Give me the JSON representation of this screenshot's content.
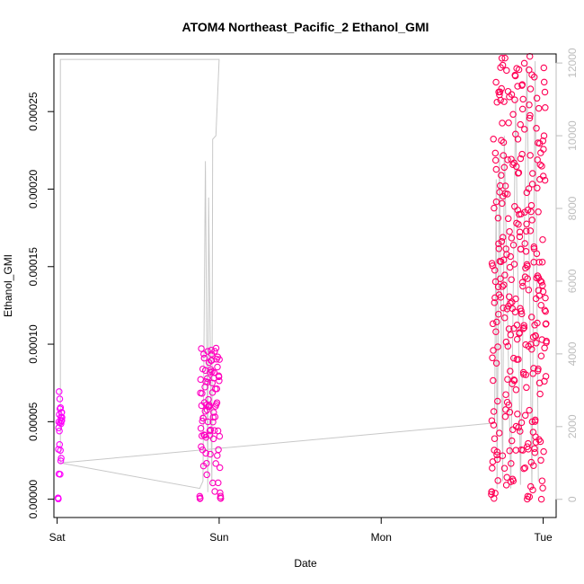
{
  "chart_data": {
    "type": "scatter",
    "title": "ATOM4 Northeast_Pacific_2 Ethanol_GMI",
    "xlabel": "Date",
    "ylabel": "Ethanol_GMI",
    "xlim": [
      -0.02,
      3.08
    ],
    "ylim": [
      -1.18e-05,
      0.0002872
    ],
    "x_ticks": [
      {
        "value": 0,
        "label": "Sat"
      },
      {
        "value": 1,
        "label": "Sun"
      },
      {
        "value": 2,
        "label": "Mon"
      },
      {
        "value": 3,
        "label": "Tue"
      }
    ],
    "y_ticks": [
      {
        "value": 0.0,
        "label": "0.00000"
      },
      {
        "value": 5e-05,
        "label": "0.00005"
      },
      {
        "value": 0.0001,
        "label": "0.00010"
      },
      {
        "value": 0.00015,
        "label": "0.00015"
      },
      {
        "value": 0.0002,
        "label": "0.00020"
      },
      {
        "value": 0.00025,
        "label": "0.00025"
      }
    ],
    "y2lim": [
      -500,
      12250
    ],
    "y2_ticks": [
      {
        "value": 0,
        "label": "0"
      },
      {
        "value": 2000,
        "label": "2000"
      },
      {
        "value": 4000,
        "label": "4000"
      },
      {
        "value": 6000,
        "label": "6000"
      },
      {
        "value": 8000,
        "label": "8000"
      },
      {
        "value": 10000,
        "label": "10000"
      },
      {
        "value": 12000,
        "label": "12000"
      }
    ],
    "secondary_series": {
      "axis": "right",
      "style": "line",
      "points": [
        [
          0.02,
          1000
        ],
        [
          0.02,
          12100
        ],
        [
          1.0,
          12100
        ],
        [
          0.98,
          10000
        ],
        [
          0.96,
          9900
        ],
        [
          0.955,
          400
        ],
        [
          0.935,
          8300
        ],
        [
          0.93,
          200
        ],
        [
          0.915,
          9300
        ],
        [
          0.9,
          500
        ],
        [
          0.88,
          300
        ],
        [
          0.02,
          1000
        ],
        [
          2.7,
          2100
        ],
        [
          2.71,
          8800
        ],
        [
          2.715,
          300
        ],
        [
          2.73,
          9500
        ],
        [
          2.75,
          500
        ],
        [
          2.76,
          10000
        ],
        [
          2.8,
          300
        ],
        [
          2.83,
          11000
        ],
        [
          2.86,
          400
        ],
        [
          2.9,
          12000
        ],
        [
          2.93,
          300
        ],
        [
          2.95,
          12050
        ],
        [
          2.97,
          500
        ]
      ]
    },
    "clusters": [
      {
        "x_start": 0.005,
        "x_end": 0.03,
        "y_min": 0.0,
        "y_max": 7.5e-05,
        "y_end": 5e-05,
        "count": 26
      },
      {
        "x_start": 0.88,
        "x_end": 1.01,
        "y_min": 0.0,
        "y_max": 9.8e-05,
        "y_end": 0.0,
        "count": 90
      },
      {
        "x_start": 2.68,
        "x_end": 3.02,
        "y_min": 0.0,
        "y_max": 0.000287,
        "y_end": 7e-05,
        "count": 320
      }
    ],
    "series": [
      {
        "name": "",
        "color_start": "#ff00ff",
        "color_end": "#ff0055"
      }
    ]
  }
}
